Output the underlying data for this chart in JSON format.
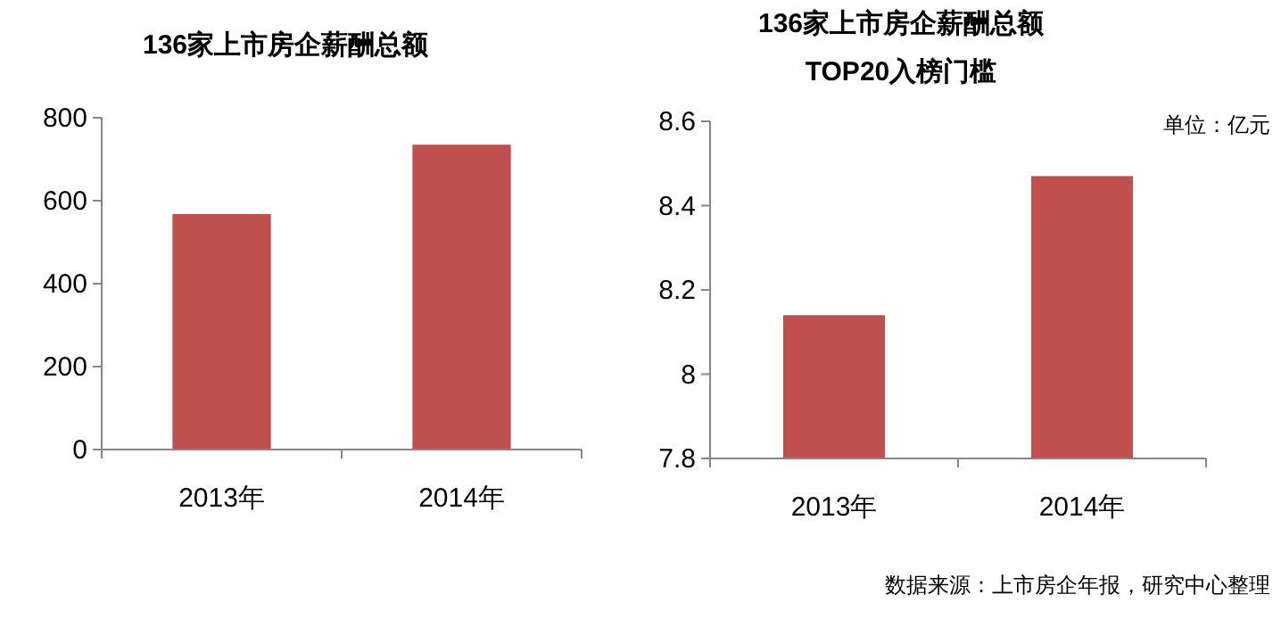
{
  "chart_data": [
    {
      "type": "bar",
      "title": "136家上市房企薪酬总额",
      "categories": [
        "2013年",
        "2014年"
      ],
      "series": [
        {
          "color": "#c0504d",
          "values": [
            568,
            735
          ]
        }
      ],
      "ylim": [
        0,
        800
      ],
      "yticks": [
        0,
        200,
        400,
        600,
        800
      ],
      "grid": false
    },
    {
      "type": "bar",
      "title": "136家上市房企薪酬总额\nTOP20入榜门槛",
      "categories": [
        "2013年",
        "2014年"
      ],
      "series": [
        {
          "color": "#c0504d",
          "values": [
            8.14,
            8.47
          ]
        }
      ],
      "ylim": [
        7.8,
        8.6
      ],
      "yticks": [
        7.8,
        8,
        8.2,
        8.4,
        8.6
      ],
      "grid": false,
      "annotations": [
        "单位：亿元",
        "数据来源：上市房企年报，研究中心整理"
      ]
    }
  ]
}
